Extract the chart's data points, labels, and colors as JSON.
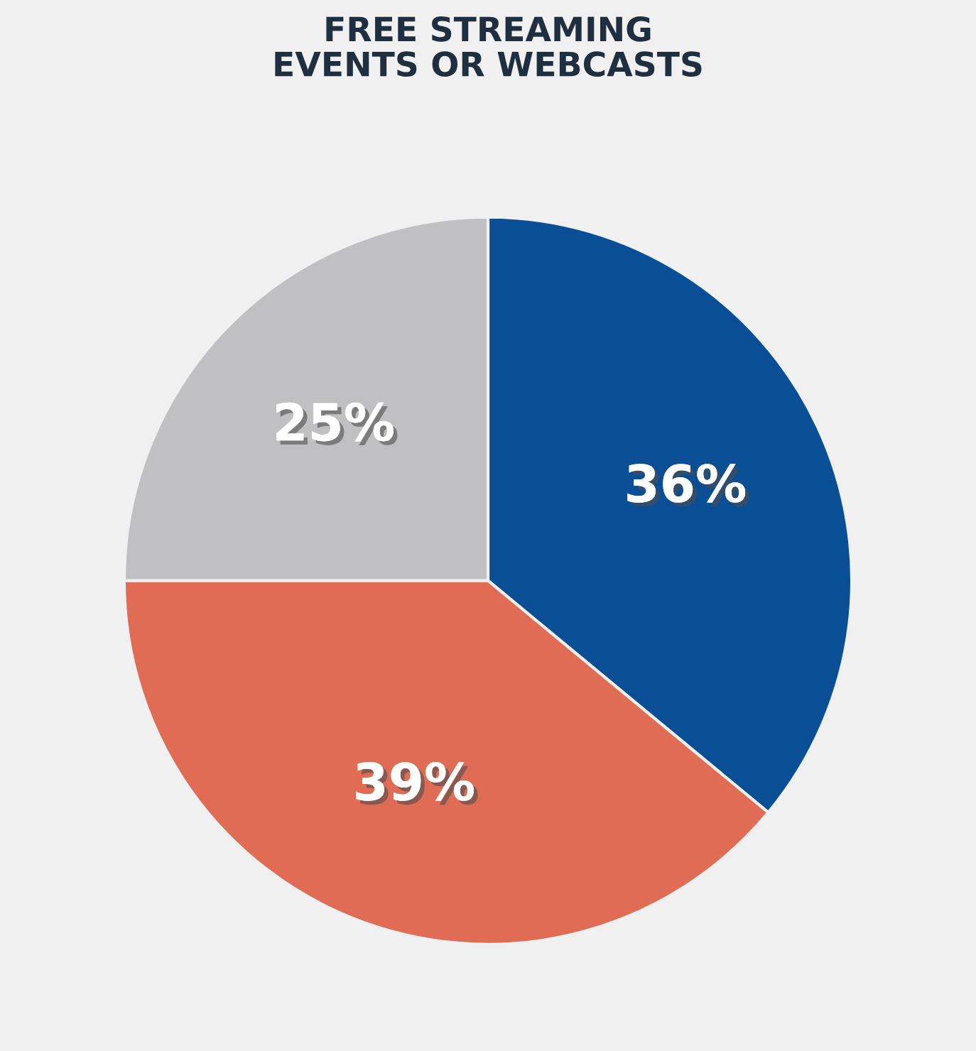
{
  "chart_data": {
    "type": "pie",
    "title": "FREE STREAMING\nEVENTS OR WEBCASTS",
    "categories": [
      null,
      null,
      null
    ],
    "values": [
      36,
      39,
      25
    ],
    "colors": [
      "#0a4f96",
      "#e06c55",
      "#c0c0c2"
    ],
    "value_labels": [
      "36%",
      "39%",
      "25%"
    ],
    "legend": false
  }
}
